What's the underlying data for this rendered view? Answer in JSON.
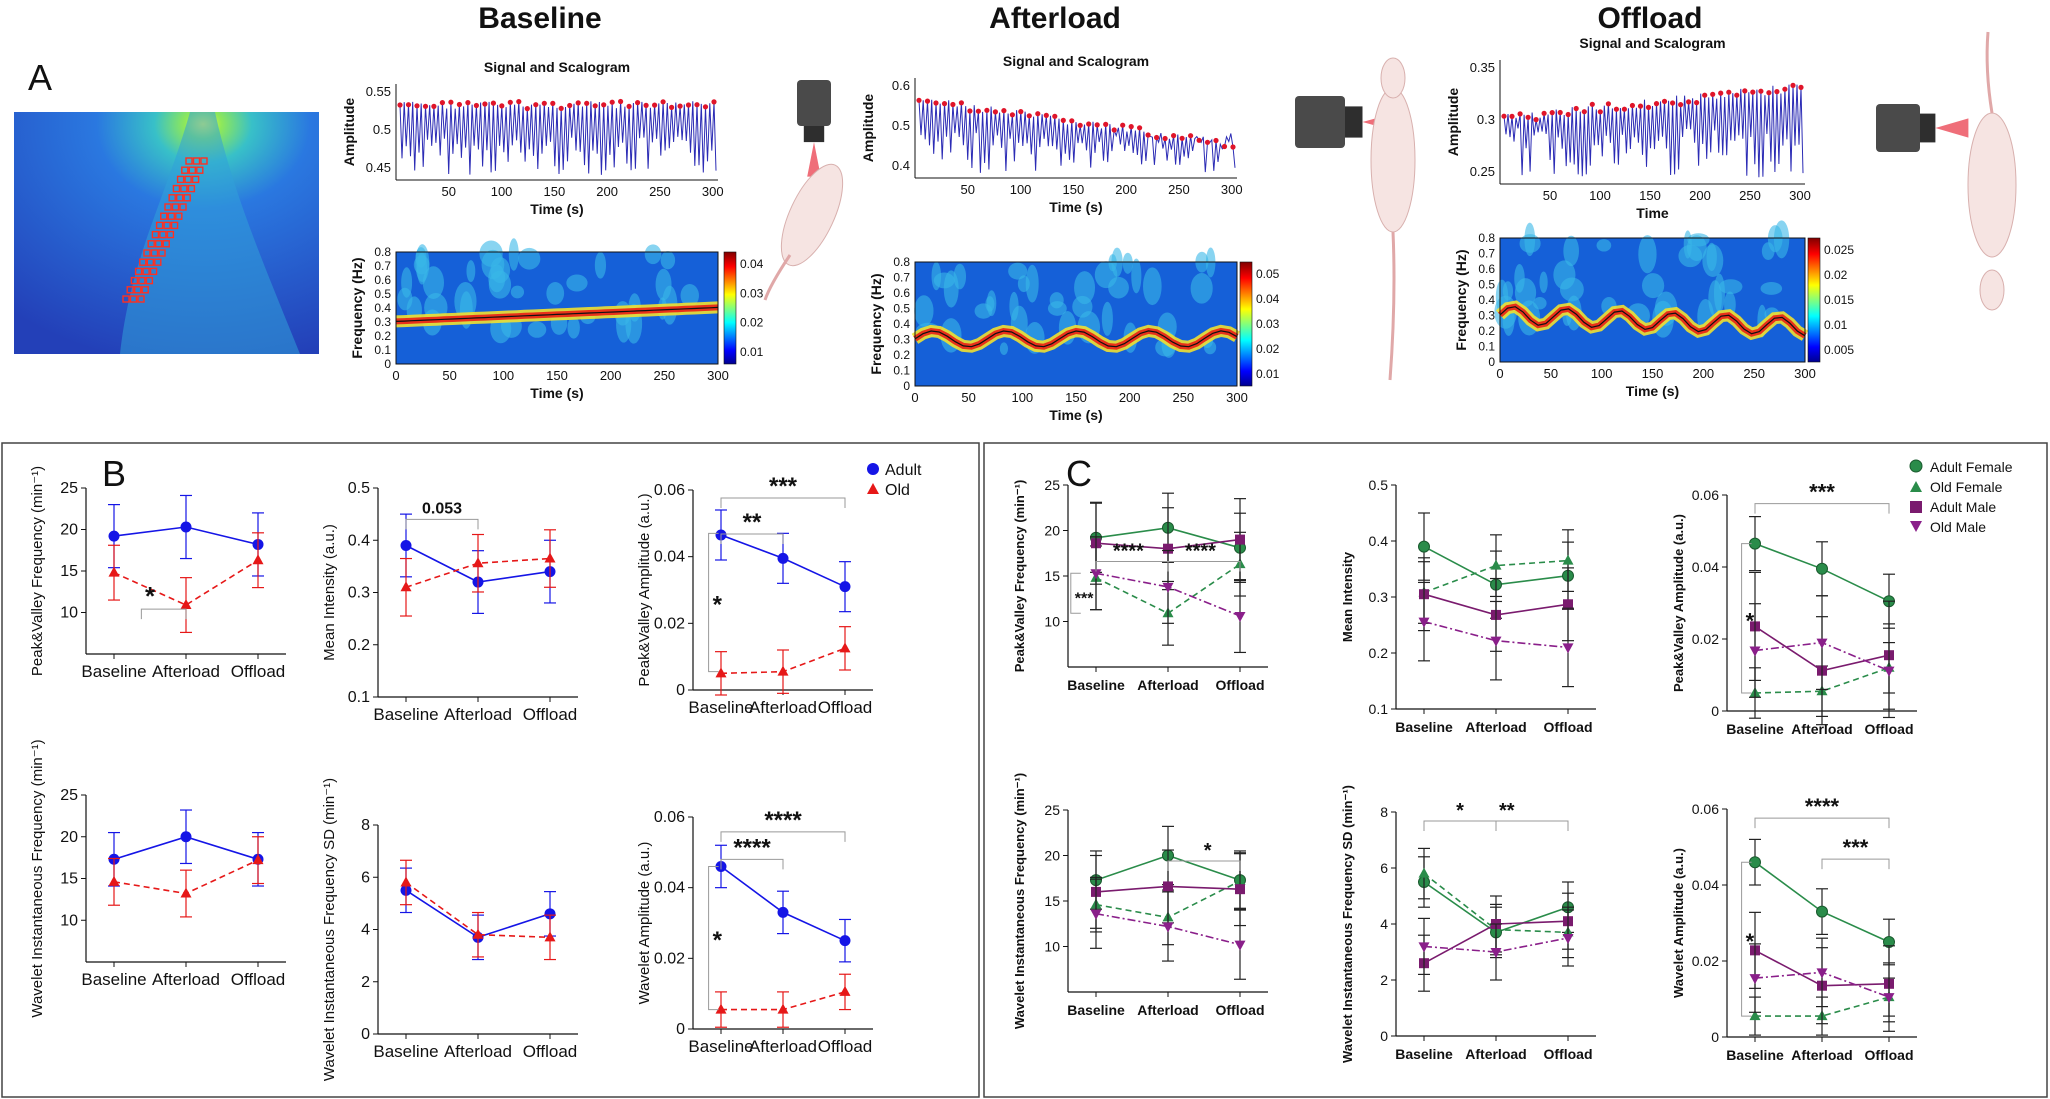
{
  "colors": {
    "adult": "#1515e6",
    "old": "#e61818",
    "adult_female": "#2a8c4a",
    "old_female": "#2a8c4a",
    "adult_male": "#7a1b6e",
    "old_male": "#8a1f8a",
    "signal": "#2c2cb5",
    "peak": "#e0152a"
  },
  "panel_a": {
    "letter": "A",
    "columns": [
      {
        "heading": "Baseline",
        "signal_title": "Signal and Scalogram",
        "signal_ylabel": "Amplitude",
        "signal_xlabel": "Time (s)",
        "signal_yticks": [
          "0.55",
          "0.5",
          "0.45"
        ],
        "xticks": [
          "50",
          "100",
          "150",
          "200",
          "250",
          "300"
        ],
        "scalo_ylabel": "Frequency (Hz)",
        "scalo_xlabel": "Time (s)",
        "scalo_yticks": [
          "0.8",
          "0.7",
          "0.6",
          "0.5",
          "0.4",
          "0.3",
          "0.2",
          "0.1",
          "0"
        ],
        "scalo_xticks": [
          "0",
          "50",
          "100",
          "150",
          "200",
          "250",
          "300"
        ],
        "colorbar_ticks": [
          "0.04",
          "0.03",
          "0.02",
          "0.01"
        ]
      },
      {
        "heading": "Afterload",
        "signal_title": "Signal and Scalogram",
        "signal_ylabel": "Amplitude",
        "signal_xlabel": "Time (s)",
        "signal_yticks": [
          "0.6",
          "0.5",
          "0.4"
        ],
        "xticks": [
          "50",
          "100",
          "150",
          "200",
          "250",
          "300"
        ],
        "scalo_ylabel": "Frequency (Hz)",
        "scalo_xlabel": "Time (s)",
        "scalo_yticks": [
          "0.8",
          "0.7",
          "0.6",
          "0.5",
          "0.4",
          "0.3",
          "0.2",
          "0.1",
          "0"
        ],
        "scalo_xticks": [
          "0",
          "50",
          "100",
          "150",
          "200",
          "250",
          "300"
        ],
        "colorbar_ticks": [
          "0.05",
          "0.04",
          "0.03",
          "0.02",
          "0.01"
        ]
      },
      {
        "heading": "Offload",
        "signal_title": "Signal and Scalogram",
        "signal_ylabel": "Amplitude",
        "signal_xlabel": "Time",
        "signal_yticks": [
          "0.35",
          "0.3",
          "0.25"
        ],
        "xticks": [
          "50",
          "100",
          "150",
          "200",
          "250",
          "300"
        ],
        "scalo_ylabel": "Frequency (Hz)",
        "scalo_xlabel": "Time (s)",
        "scalo_yticks": [
          "0.8",
          "0.7",
          "0.6",
          "0.5",
          "0.4",
          "0.3",
          "0.2",
          "0.1",
          "0"
        ],
        "scalo_xticks": [
          "0",
          "50",
          "100",
          "150",
          "200",
          "250",
          "300"
        ],
        "colorbar_ticks": [
          "0.025",
          "0.02",
          "0.015",
          "0.01",
          "0.005"
        ]
      }
    ]
  },
  "panel_b_letter": "B",
  "panel_c_letter": "C",
  "legend_b": [
    "Adult",
    "Old"
  ],
  "legend_c": [
    "Adult Female",
    "Old Female",
    "Adult Male",
    "Old Male"
  ],
  "chart_data": [
    {
      "id": "B1",
      "type": "line",
      "ylabel": "Peak&Valley Frequency (min⁻¹)",
      "categories": [
        "Baseline",
        "Afterload",
        "Offload"
      ],
      "ylim": [
        5,
        25
      ],
      "yticks": [
        10,
        15,
        20,
        25
      ],
      "series": [
        {
          "name": "Adult",
          "values": [
            19.2,
            20.3,
            18.2
          ],
          "err": [
            3.8,
            3.8,
            3.8
          ]
        },
        {
          "name": "Old",
          "values": [
            14.8,
            10.9,
            16.3
          ],
          "err": [
            3.3,
            3.3,
            3.3
          ]
        }
      ],
      "annotations": [
        {
          "text": "*"
        }
      ]
    },
    {
      "id": "B2",
      "type": "line",
      "ylabel": "Mean Intensity (a.u.)",
      "categories": [
        "Baseline",
        "Afterload",
        "Offload"
      ],
      "ylim": [
        0.1,
        0.5
      ],
      "yticks": [
        0.1,
        0.2,
        0.3,
        0.4,
        0.5
      ],
      "series": [
        {
          "name": "Adult",
          "values": [
            0.39,
            0.32,
            0.34
          ],
          "err": [
            0.06,
            0.06,
            0.06
          ]
        },
        {
          "name": "Old",
          "values": [
            0.31,
            0.356,
            0.365
          ],
          "err": [
            0.055,
            0.055,
            0.055
          ]
        }
      ],
      "annotations": [
        {
          "text": "0.053"
        }
      ]
    },
    {
      "id": "B3",
      "type": "line",
      "ylabel": "Peak&Valley Amplitude (a.u.)",
      "categories": [
        "Baseline",
        "Afterload",
        "Offload"
      ],
      "ylim": [
        0,
        0.06
      ],
      "yticks": [
        0,
        0.02,
        0.04,
        0.06
      ],
      "series": [
        {
          "name": "Adult",
          "values": [
            0.0465,
            0.0395,
            0.031
          ],
          "err": [
            0.0075,
            0.0075,
            0.0075
          ]
        },
        {
          "name": "Old",
          "values": [
            0.005,
            0.0055,
            0.0125
          ],
          "err": [
            0.0065,
            0.0065,
            0.0065
          ]
        }
      ],
      "annotations": [
        {
          "text": "***"
        },
        {
          "text": "**"
        },
        {
          "text": "*"
        }
      ]
    },
    {
      "id": "B4",
      "type": "line",
      "ylabel": "Wavelet Instantaneous Frequency (min⁻¹)",
      "categories": [
        "Baseline",
        "Afterload",
        "Offload"
      ],
      "ylim": [
        5,
        25
      ],
      "yticks": [
        10,
        15,
        20,
        25
      ],
      "series": [
        {
          "name": "Adult",
          "values": [
            17.3,
            20.0,
            17.3
          ],
          "err": [
            3.2,
            3.2,
            3.2
          ]
        },
        {
          "name": "Old",
          "values": [
            14.6,
            13.2,
            17.2
          ],
          "err": [
            2.8,
            2.8,
            2.8
          ]
        }
      ],
      "annotations": []
    },
    {
      "id": "B5",
      "type": "line",
      "ylabel": "Wavelet Instantaneous Frequency SD (min⁻¹)",
      "categories": [
        "Baseline",
        "Afterload",
        "Offload"
      ],
      "ylim": [
        0,
        8
      ],
      "yticks": [
        0,
        2,
        4,
        6,
        8
      ],
      "series": [
        {
          "name": "Adult",
          "values": [
            5.5,
            3.7,
            4.6
          ],
          "err": [
            0.85,
            0.85,
            0.85
          ]
        },
        {
          "name": "Old",
          "values": [
            5.8,
            3.8,
            3.7
          ],
          "err": [
            0.85,
            0.85,
            0.85
          ]
        }
      ],
      "annotations": []
    },
    {
      "id": "B6",
      "type": "line",
      "ylabel": "Wavelet Amplitude (a.u.)",
      "categories": [
        "Baseline",
        "Afterload",
        "Offload"
      ],
      "ylim": [
        0,
        0.06
      ],
      "yticks": [
        0,
        0.02,
        0.04,
        0.06
      ],
      "series": [
        {
          "name": "Adult",
          "values": [
            0.046,
            0.033,
            0.025
          ],
          "err": [
            0.006,
            0.006,
            0.006
          ]
        },
        {
          "name": "Old",
          "values": [
            0.0055,
            0.0055,
            0.0105
          ],
          "err": [
            0.005,
            0.005,
            0.005
          ]
        }
      ],
      "annotations": [
        {
          "text": "****"
        },
        {
          "text": "****"
        },
        {
          "text": "*"
        }
      ]
    },
    {
      "id": "C1",
      "type": "line",
      "ylabel": "Peak&Valley Frequency (min⁻¹)",
      "categories": [
        "Baseline",
        "Afterload",
        "Offload"
      ],
      "ylim": [
        5,
        25
      ],
      "yticks": [
        10,
        15,
        20,
        25
      ],
      "series": [
        {
          "name": "Adult Female",
          "values": [
            19.2,
            20.3,
            18.1
          ],
          "err": [
            3.8,
            3.8,
            3.8
          ]
        },
        {
          "name": "Old Female",
          "values": [
            14.8,
            10.9,
            16.3
          ],
          "err": [
            3.5,
            3.5,
            3.5
          ]
        },
        {
          "name": "Adult Male",
          "values": [
            18.6,
            18.0,
            19.0
          ],
          "err": [
            4.5,
            4.5,
            4.5
          ]
        },
        {
          "name": "Old Male",
          "values": [
            15.3,
            13.8,
            10.6
          ],
          "err": [
            4.0,
            4.0,
            4.0
          ]
        }
      ],
      "annotations": [
        {
          "text": "****"
        },
        {
          "text": "****"
        },
        {
          "text": "***"
        }
      ]
    },
    {
      "id": "C2",
      "type": "line",
      "ylabel": "Mean Intensity",
      "categories": [
        "Baseline",
        "Afterload",
        "Offload"
      ],
      "ylim": [
        0.1,
        0.5
      ],
      "yticks": [
        0.1,
        0.2,
        0.3,
        0.4,
        0.5
      ],
      "series": [
        {
          "name": "Adult Female",
          "values": [
            0.39,
            0.322,
            0.338
          ],
          "err": [
            0.06,
            0.06,
            0.06
          ]
        },
        {
          "name": "Old Female",
          "values": [
            0.308,
            0.356,
            0.365
          ],
          "err": [
            0.055,
            0.055,
            0.055
          ]
        },
        {
          "name": "Adult Male",
          "values": [
            0.305,
            0.268,
            0.287
          ],
          "err": [
            0.065,
            0.065,
            0.065
          ]
        },
        {
          "name": "Old Male",
          "values": [
            0.256,
            0.222,
            0.21
          ],
          "err": [
            0.07,
            0.07,
            0.07
          ]
        }
      ],
      "annotations": []
    },
    {
      "id": "C3",
      "type": "line",
      "ylabel": "Peak&Valley Amplitude (a.u.)",
      "categories": [
        "Baseline",
        "Afterload",
        "Offload"
      ],
      "ylim": [
        0,
        0.06
      ],
      "yticks": [
        0,
        0.02,
        0.04,
        0.06
      ],
      "series": [
        {
          "name": "Adult Female",
          "values": [
            0.0465,
            0.0395,
            0.0305
          ],
          "err": [
            0.0075,
            0.0075,
            0.0075
          ]
        },
        {
          "name": "Old Female",
          "values": [
            0.005,
            0.0055,
            0.012
          ],
          "err": [
            0.007,
            0.007,
            0.007
          ]
        },
        {
          "name": "Adult Male",
          "values": [
            0.0235,
            0.0112,
            0.0155
          ],
          "err": [
            0.015,
            0.015,
            0.015
          ]
        },
        {
          "name": "Old Male",
          "values": [
            0.0168,
            0.019,
            0.0112
          ],
          "err": [
            0.013,
            0.013,
            0.013
          ]
        }
      ],
      "annotations": [
        {
          "text": "***"
        },
        {
          "text": "*"
        }
      ]
    },
    {
      "id": "C4",
      "type": "line",
      "ylabel": "Wavelet Instantaneous Frequency (min⁻¹)",
      "categories": [
        "Baseline",
        "Afterload",
        "Offload"
      ],
      "ylim": [
        5,
        25
      ],
      "yticks": [
        10,
        15,
        20,
        25
      ],
      "series": [
        {
          "name": "Adult Female",
          "values": [
            17.3,
            20.0,
            17.3
          ],
          "err": [
            3.2,
            3.2,
            3.2
          ]
        },
        {
          "name": "Old Female",
          "values": [
            14.6,
            13.2,
            17.2
          ],
          "err": [
            3.0,
            3.0,
            3.0
          ]
        },
        {
          "name": "Adult Male",
          "values": [
            16.0,
            16.6,
            16.3
          ],
          "err": [
            4.0,
            4.0,
            4.0
          ]
        },
        {
          "name": "Old Male",
          "values": [
            13.6,
            12.2,
            10.2
          ],
          "err": [
            3.8,
            3.8,
            3.8
          ]
        }
      ],
      "annotations": [
        {
          "text": "*"
        }
      ]
    },
    {
      "id": "C5",
      "type": "line",
      "ylabel": "Wavelet Instantaneous Frequency SD (min⁻¹)",
      "categories": [
        "Baseline",
        "Afterload",
        "Offload"
      ],
      "ylim": [
        0,
        8
      ],
      "yticks": [
        0,
        2,
        4,
        6,
        8
      ],
      "series": [
        {
          "name": "Adult Female",
          "values": [
            5.5,
            3.7,
            4.6
          ],
          "err": [
            0.9,
            0.9,
            0.9
          ]
        },
        {
          "name": "Old Female",
          "values": [
            5.8,
            3.8,
            3.7
          ],
          "err": [
            0.9,
            0.9,
            0.9
          ]
        },
        {
          "name": "Adult Male",
          "values": [
            2.6,
            4.0,
            4.1
          ],
          "err": [
            1.0,
            1.0,
            1.0
          ]
        },
        {
          "name": "Old Male",
          "values": [
            3.2,
            3.0,
            3.5
          ],
          "err": [
            1.0,
            1.0,
            1.0
          ]
        }
      ],
      "annotations": [
        {
          "text": "*"
        },
        {
          "text": "**"
        }
      ]
    },
    {
      "id": "C6",
      "type": "line",
      "ylabel": "Wavelet Amplitude (a.u.)",
      "categories": [
        "Baseline",
        "Afterload",
        "Offload"
      ],
      "ylim": [
        0,
        0.06
      ],
      "yticks": [
        0,
        0.02,
        0.04,
        0.06
      ],
      "series": [
        {
          "name": "Adult Female",
          "values": [
            0.046,
            0.033,
            0.025
          ],
          "err": [
            0.006,
            0.006,
            0.006
          ]
        },
        {
          "name": "Old Female",
          "values": [
            0.0055,
            0.0055,
            0.0105
          ],
          "err": [
            0.005,
            0.005,
            0.005
          ]
        },
        {
          "name": "Adult Male",
          "values": [
            0.0228,
            0.0135,
            0.014
          ],
          "err": [
            0.01,
            0.01,
            0.01
          ]
        },
        {
          "name": "Old Male",
          "values": [
            0.0155,
            0.017,
            0.0105
          ],
          "err": [
            0.009,
            0.009,
            0.009
          ]
        }
      ],
      "annotations": [
        {
          "text": "****"
        },
        {
          "text": "***"
        },
        {
          "text": "*"
        }
      ]
    }
  ]
}
